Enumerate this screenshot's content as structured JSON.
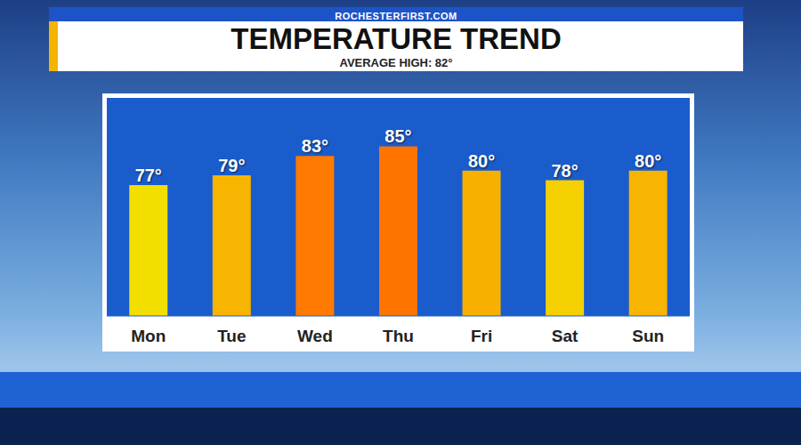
{
  "chart_data": {
    "type": "bar",
    "title": "TEMPERATURE TREND",
    "subtitle": "AVERAGE HIGH: 82°",
    "source": "ROCHESTERFIRST.COM",
    "categories": [
      "Mon",
      "Tue",
      "Wed",
      "Thu",
      "Fri",
      "Sat",
      "Sun"
    ],
    "values": [
      77,
      79,
      83,
      85,
      80,
      78,
      80
    ],
    "value_labels": [
      "77°",
      "79°",
      "83°",
      "85°",
      "80°",
      "78°",
      "80°"
    ],
    "colors": [
      "#f2df00",
      "#f7b400",
      "#ff7a00",
      "#ff7400",
      "#f7b000",
      "#f5d000",
      "#f7b400"
    ],
    "ylim": [
      50,
      95
    ],
    "data_labels": true,
    "tick_labels": "x",
    "grid": false
  }
}
